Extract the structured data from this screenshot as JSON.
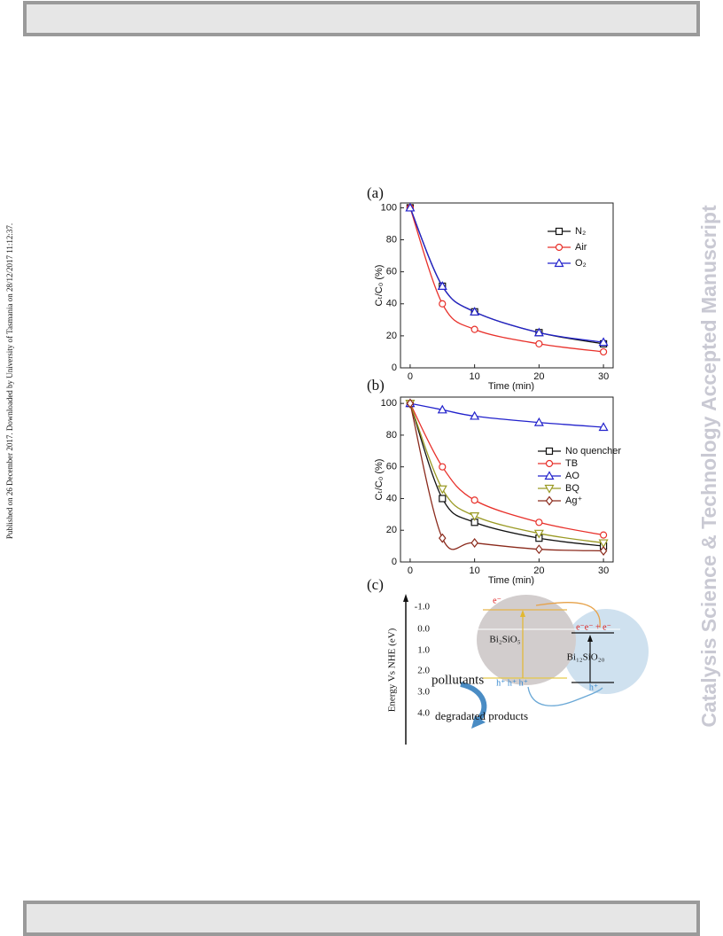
{
  "side_note": "Published on 26 December 2017. Downloaded by University of Tasmania on 28/12/2017 11:12:37.",
  "watermark": "Catalysis Science & Technology Accepted Manuscript",
  "figure": {
    "panels": [
      "(a)",
      "(b)",
      "(c)"
    ]
  },
  "chart_data": [
    {
      "type": "line",
      "xlabel": "Time (min)",
      "ylabel": "Cₜ/C₀ (%)",
      "x": [
        0,
        5,
        10,
        20,
        30
      ],
      "xlim": [
        -1.5,
        31.5
      ],
      "xticks": [
        0,
        10,
        20,
        30
      ],
      "ylim": [
        0,
        103
      ],
      "yticks": [
        0,
        20,
        40,
        60,
        80,
        100
      ],
      "legend": "upper right",
      "series": [
        {
          "name": "N₂",
          "color": "#111111",
          "marker": "square",
          "values": [
            100,
            51,
            35,
            22,
            15
          ]
        },
        {
          "name": "Air",
          "color": "#e8302a",
          "marker": "circle",
          "values": [
            100,
            40,
            24,
            15,
            10
          ]
        },
        {
          "name": "O₂",
          "color": "#2222cc",
          "marker": "triangle",
          "values": [
            100,
            51,
            35,
            22,
            16
          ]
        }
      ]
    },
    {
      "type": "line",
      "xlabel": "Time (min)",
      "ylabel": "Cₜ/C₀ (%)",
      "x": [
        0,
        5,
        10,
        20,
        30
      ],
      "xlim": [
        -1.5,
        31.5
      ],
      "xticks": [
        0,
        10,
        20,
        30
      ],
      "ylim": [
        0,
        104
      ],
      "yticks": [
        0,
        20,
        40,
        60,
        80,
        100
      ],
      "legend": "center right",
      "series": [
        {
          "name": "No quencher",
          "color": "#111111",
          "marker": "square",
          "values": [
            100,
            40,
            25,
            15,
            10
          ]
        },
        {
          "name": "TB",
          "color": "#e8302a",
          "marker": "circle",
          "values": [
            100,
            60,
            39,
            25,
            17
          ]
        },
        {
          "name": "AO",
          "color": "#2222cc",
          "marker": "triangle",
          "values": [
            100,
            96,
            92,
            88,
            85
          ]
        },
        {
          "name": "BQ",
          "color": "#9a9a24",
          "marker": "triangle-down",
          "values": [
            100,
            46,
            29,
            18,
            12
          ]
        },
        {
          "name": "Ag⁺",
          "color": "#8b2a1c",
          "marker": "diamond",
          "values": [
            100,
            15,
            12,
            8,
            7
          ]
        }
      ]
    }
  ],
  "diagram": {
    "axis_label": "Energy Vs NHE (eV)",
    "ticks": [
      "-1.0",
      "0.0",
      "1.0",
      "2.0",
      "3.0",
      "4.0"
    ],
    "left_material": "Bi₂SiO₅",
    "right_material": "Bi₁₂SiO₂₀",
    "left_electron": "e⁻",
    "right_electrons": "e⁻e⁻ + e⁻",
    "left_holes": "h⁺ h⁺ h⁺",
    "right_hole": "h⁺",
    "reactant": "pollutants",
    "product": "degradated products"
  }
}
